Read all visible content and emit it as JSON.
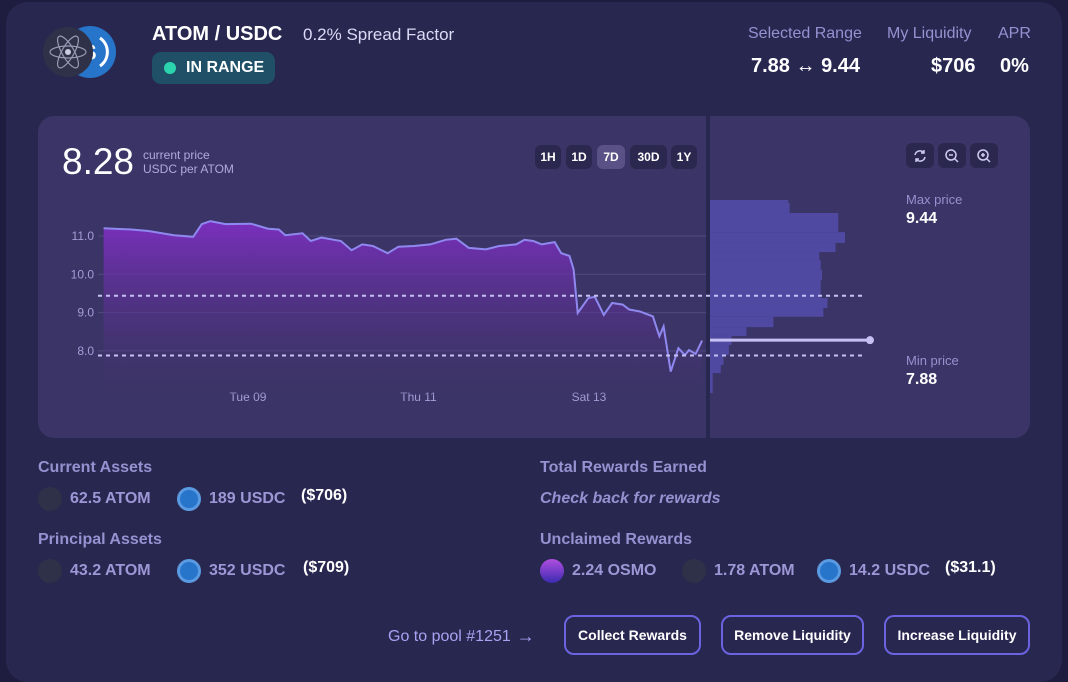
{
  "header": {
    "pair": "ATOM / USDC",
    "spread_factor": "0.2% Spread Factor",
    "status": "IN RANGE",
    "status_color": "#2bd4ad",
    "selected_range_label": "Selected Range",
    "selected_range_min": "7.88",
    "range_arrow": "↔",
    "selected_range_max": "9.44",
    "liquidity_label": "My Liquidity",
    "liquidity_value": "$706",
    "apr_label": "APR",
    "apr_value": "0%"
  },
  "price": {
    "current": "8.28",
    "current_label": "current price",
    "unit": "USDC per ATOM"
  },
  "timeframes": [
    {
      "label": "1H",
      "selected": false
    },
    {
      "label": "1D",
      "selected": false
    },
    {
      "label": "7D",
      "selected": true
    },
    {
      "label": "30D",
      "selected": false
    },
    {
      "label": "1Y",
      "selected": false
    }
  ],
  "chart_tools": [
    "refresh-icon",
    "zoom-out-icon",
    "zoom-in-icon"
  ],
  "range": {
    "max_label": "Max price",
    "max_value": "9.44",
    "min_label": "Min price",
    "min_value": "7.88"
  },
  "chart_data": {
    "type": "area",
    "x_ticks": [
      {
        "label": "Tue 09",
        "t": "09 00:00"
      },
      {
        "label": "Thu 11",
        "t": "11 00:00"
      },
      {
        "label": "Sat 13",
        "t": "13 00:00"
      }
    ],
    "y_ticks": [
      "11.0",
      "10.0",
      "9.0",
      "8.0"
    ],
    "ylim": [
      6.9,
      12.0
    ],
    "grid": true,
    "current_price": 8.28,
    "range_min": 7.88,
    "range_max": 9.44,
    "series": [
      [
        "07 07:20",
        11.2
      ],
      [
        "07 15:10",
        11.17
      ],
      [
        "07 20:00",
        11.13
      ],
      [
        "08 03:10",
        11.02
      ],
      [
        "08 08:35",
        10.98
      ],
      [
        "08 11:00",
        11.31
      ],
      [
        "08 13:25",
        11.39
      ],
      [
        "08 17:40",
        11.31
      ],
      [
        "09 00:50",
        11.32
      ],
      [
        "09 05:40",
        11.19
      ],
      [
        "09 08:40",
        11.17
      ],
      [
        "09 10:30",
        11.02
      ],
      [
        "09 15:20",
        11.07
      ],
      [
        "09 17:40",
        10.87
      ],
      [
        "09 20:40",
        10.96
      ],
      [
        "10 02:10",
        10.87
      ],
      [
        "10 05:10",
        10.63
      ],
      [
        "10 08:10",
        10.78
      ],
      [
        "10 11:10",
        10.74
      ],
      [
        "10 15:20",
        10.55
      ],
      [
        "10 18:20",
        10.72
      ],
      [
        "10 22:40",
        10.74
      ],
      [
        "11 03:20",
        10.78
      ],
      [
        "11 07:40",
        10.9
      ],
      [
        "11 10:40",
        10.93
      ],
      [
        "11 14:10",
        10.69
      ],
      [
        "11 19:00",
        10.65
      ],
      [
        "11 22:40",
        10.74
      ],
      [
        "12 03:30",
        10.78
      ],
      [
        "12 05:50",
        10.9
      ],
      [
        "12 08:20",
        10.87
      ],
      [
        "12 10:40",
        10.78
      ],
      [
        "12 14:20",
        10.84
      ],
      [
        "12 16:10",
        10.55
      ],
      [
        "12 18:30",
        10.48
      ],
      [
        "12 19:40",
        10.13
      ],
      [
        "12 20:50",
        8.99
      ],
      [
        "12 23:50",
        9.38
      ],
      [
        "13 01:40",
        9.41
      ],
      [
        "13 04:10",
        8.94
      ],
      [
        "13 06:30",
        9.25
      ],
      [
        "13 09:30",
        9.21
      ],
      [
        "13 11:20",
        9.08
      ],
      [
        "13 14:20",
        9.03
      ],
      [
        "13 18:00",
        8.9
      ],
      [
        "13 19:50",
        8.38
      ],
      [
        "13 21:00",
        8.64
      ],
      [
        "13 23:00",
        7.46
      ],
      [
        "14 01:10",
        8.07
      ],
      [
        "14 03:00",
        7.89
      ],
      [
        "14 04:10",
        8.02
      ],
      [
        "14 06:00",
        7.92
      ],
      [
        "14 07:50",
        8.27
      ]
    ],
    "liquidity_depth_pct": [
      [
        11.86,
        11.94,
        58
      ],
      [
        11.6,
        11.86,
        59
      ],
      [
        11.1,
        11.6,
        95
      ],
      [
        10.82,
        11.1,
        100
      ],
      [
        10.58,
        10.82,
        93
      ],
      [
        10.37,
        10.58,
        81
      ],
      [
        10.11,
        10.37,
        82
      ],
      [
        9.85,
        10.11,
        83
      ],
      [
        9.38,
        9.85,
        82
      ],
      [
        9.12,
        9.38,
        87
      ],
      [
        8.89,
        9.12,
        84
      ],
      [
        8.62,
        8.89,
        47
      ],
      [
        8.39,
        8.62,
        27
      ],
      [
        8.15,
        8.39,
        16
      ],
      [
        7.89,
        8.15,
        14
      ],
      [
        7.63,
        7.89,
        10
      ],
      [
        7.42,
        7.63,
        8
      ],
      [
        6.9,
        7.42,
        2
      ]
    ]
  },
  "assets": {
    "current_label": "Current Assets",
    "current": [
      {
        "amount": "62.5 ATOM",
        "icon": "atom-icon"
      },
      {
        "amount": "189 USDC",
        "icon": "usdc-icon"
      }
    ],
    "current_total": "($706)",
    "principal_label": "Principal Assets",
    "principal": [
      {
        "amount": "43.2 ATOM",
        "icon": "atom-icon"
      },
      {
        "amount": "352 USDC",
        "icon": "usdc-icon"
      }
    ],
    "principal_total": "($709)"
  },
  "rewards": {
    "total_label": "Total Rewards Earned",
    "total_message": "Check back for rewards",
    "unclaimed_label": "Unclaimed Rewards",
    "unclaimed": [
      {
        "amount": "2.24 OSMO",
        "icon": "osmo-icon"
      },
      {
        "amount": "1.78 ATOM",
        "icon": "atom-icon"
      },
      {
        "amount": "14.2 USDC",
        "icon": "usdc-icon"
      }
    ],
    "unclaimed_total": "($31.1)"
  },
  "actions": {
    "pool_link": "Go to pool #1251",
    "collect": "Collect Rewards",
    "remove": "Remove Liquidity",
    "increase": "Increase Liquidity"
  },
  "colors": {
    "accent": "#6b63e0",
    "line": "#8f88f0",
    "usdc": "#2775ca"
  }
}
